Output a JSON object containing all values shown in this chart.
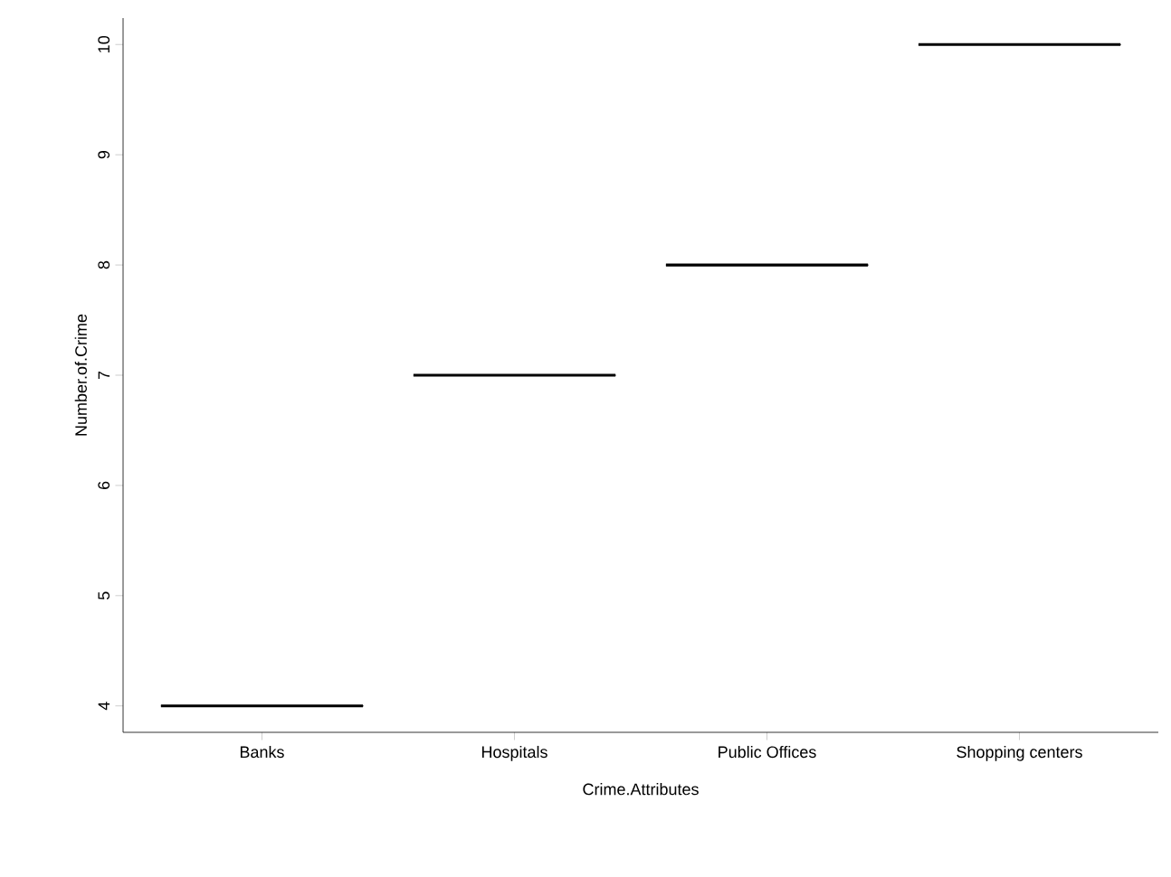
{
  "chart_data": {
    "type": "box",
    "xlabel": "Crime.Attributes",
    "ylabel": "Number.of.Crime",
    "categories": [
      "Banks",
      "Hospitals",
      "Public Offices",
      "Shopping centers"
    ],
    "boxes": [
      {
        "low": 4,
        "q1": 4,
        "median": 4,
        "q3": 4,
        "high": 4
      },
      {
        "low": 7,
        "q1": 7,
        "median": 7,
        "q3": 7,
        "high": 7
      },
      {
        "low": 8,
        "q1": 8,
        "median": 8,
        "q3": 8,
        "high": 8
      },
      {
        "low": 10,
        "q1": 10,
        "median": 10,
        "q3": 10,
        "high": 10
      }
    ],
    "ylim": [
      3.76,
      10.24
    ],
    "yticks": [
      4,
      5,
      6,
      7,
      8,
      9,
      10
    ]
  }
}
